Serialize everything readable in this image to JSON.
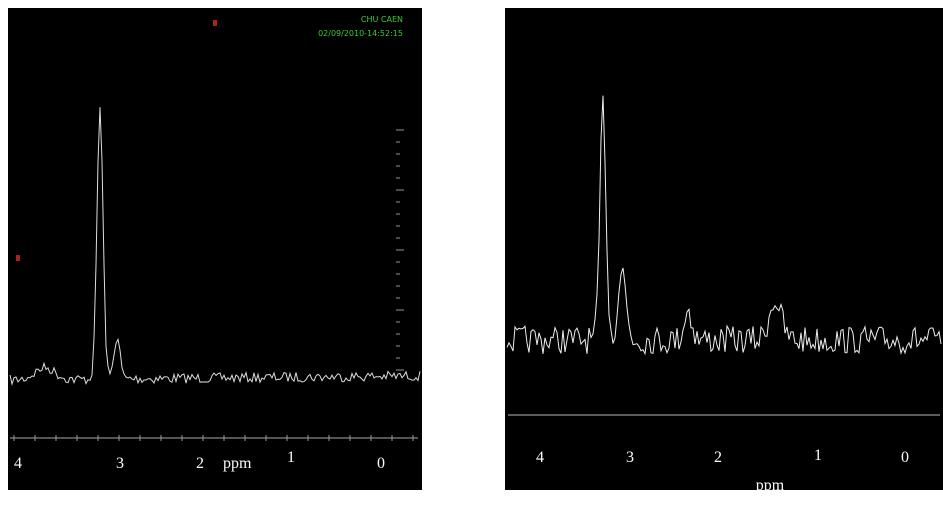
{
  "left_panel": {
    "header": {
      "site": "CHU CAEN",
      "timestamp": "02/09/2010-14:52:15"
    },
    "axis_labels": [
      "4",
      "3",
      "2",
      "ppm",
      "1",
      "0"
    ]
  },
  "right_panel": {
    "axis_labels": [
      "4",
      "3",
      "2",
      "1",
      "0"
    ],
    "unit": "ppm"
  }
}
